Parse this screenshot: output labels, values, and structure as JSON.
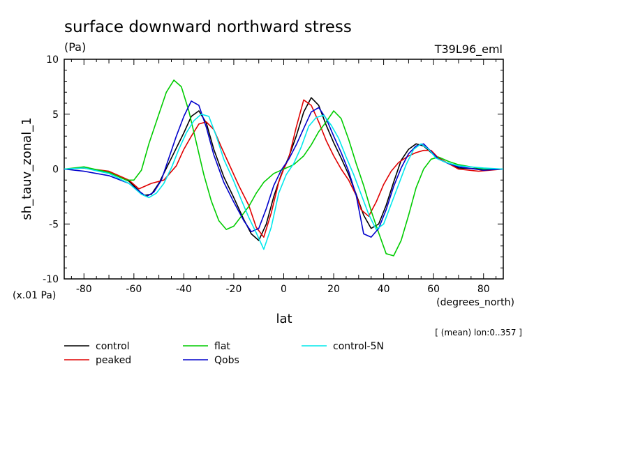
{
  "chart_data": {
    "type": "line",
    "title": "surface downward northward stress",
    "units": "(Pa)",
    "run_label": "T39L96_eml",
    "scale_label": "(x.01 Pa)",
    "x_units": "(degrees_north)",
    "xlabel": "lat",
    "ylabel": "sh_tauv_zonal_1",
    "note": "[ (mean) lon:0..357 ]",
    "xlim": [
      -87.9,
      87.9
    ],
    "ylim": [
      -10,
      10
    ],
    "x_ticks": [
      -80,
      -60,
      -40,
      -20,
      0,
      20,
      40,
      60,
      80
    ],
    "y_ticks": [
      -10,
      -5,
      0,
      5,
      10
    ],
    "legend_position": "bottom",
    "series": [
      {
        "name": "control",
        "color": "#000000",
        "points": [
          [
            -87.9,
            0
          ],
          [
            -80,
            0.1
          ],
          [
            -70,
            -0.3
          ],
          [
            -62,
            -1.1
          ],
          [
            -56,
            -2.4
          ],
          [
            -53,
            -2.3
          ],
          [
            -50,
            -1.3
          ],
          [
            -45,
            1
          ],
          [
            -40,
            3.3
          ],
          [
            -37,
            4.8
          ],
          [
            -34,
            5.3
          ],
          [
            -31,
            4.2
          ],
          [
            -28,
            1.8
          ],
          [
            -24,
            -0.7
          ],
          [
            -20,
            -2.6
          ],
          [
            -16,
            -4.6
          ],
          [
            -13,
            -5.9
          ],
          [
            -10,
            -6.5
          ],
          [
            -7,
            -5
          ],
          [
            -4,
            -2.5
          ],
          [
            -1,
            -0.5
          ],
          [
            2,
            1.1
          ],
          [
            5,
            3
          ],
          [
            8,
            5.2
          ],
          [
            11,
            6.5
          ],
          [
            14,
            5.8
          ],
          [
            17,
            4
          ],
          [
            20,
            2.4
          ],
          [
            23,
            1
          ],
          [
            26,
            -0.5
          ],
          [
            29,
            -2.3
          ],
          [
            32,
            -4.2
          ],
          [
            35,
            -5.4
          ],
          [
            38,
            -5
          ],
          [
            41,
            -3.3
          ],
          [
            44,
            -1.2
          ],
          [
            47,
            0.8
          ],
          [
            50,
            1.8
          ],
          [
            53,
            2.3
          ],
          [
            56,
            2.1
          ],
          [
            60,
            1.3
          ],
          [
            65,
            0.6
          ],
          [
            70,
            0.1
          ],
          [
            80,
            0
          ],
          [
            87.9,
            0
          ]
        ]
      },
      {
        "name": "peaked",
        "color": "#e00000",
        "points": [
          [
            -87.9,
            0
          ],
          [
            -80,
            0.1
          ],
          [
            -70,
            -0.2
          ],
          [
            -62,
            -1
          ],
          [
            -58,
            -1.8
          ],
          [
            -53,
            -1.3
          ],
          [
            -48,
            -1
          ],
          [
            -43,
            0.3
          ],
          [
            -40,
            1.8
          ],
          [
            -37,
            3
          ],
          [
            -34,
            4.1
          ],
          [
            -31,
            4.3
          ],
          [
            -28,
            3.6
          ],
          [
            -25,
            2
          ],
          [
            -21,
            0
          ],
          [
            -18,
            -1.5
          ],
          [
            -14,
            -3.3
          ],
          [
            -11,
            -5.3
          ],
          [
            -8,
            -6.2
          ],
          [
            -5,
            -4
          ],
          [
            -2,
            -1.2
          ],
          [
            0,
            0
          ],
          [
            2,
            1
          ],
          [
            5,
            3.8
          ],
          [
            8,
            6.3
          ],
          [
            11,
            5.8
          ],
          [
            14,
            4.3
          ],
          [
            17,
            2.6
          ],
          [
            20,
            1.2
          ],
          [
            23,
            0
          ],
          [
            26,
            -1
          ],
          [
            29,
            -2.4
          ],
          [
            31,
            -3.7
          ],
          [
            34,
            -4.3
          ],
          [
            37,
            -3
          ],
          [
            40,
            -1.4
          ],
          [
            43,
            -0.2
          ],
          [
            46,
            0.6
          ],
          [
            50,
            1.2
          ],
          [
            53,
            1.5
          ],
          [
            56,
            1.7
          ],
          [
            59,
            1.7
          ],
          [
            62,
            1
          ],
          [
            66,
            0.5
          ],
          [
            70,
            0
          ],
          [
            78,
            -0.2
          ],
          [
            87.9,
            0
          ]
        ]
      },
      {
        "name": "flat",
        "color": "#00cc00",
        "points": [
          [
            -87.9,
            0
          ],
          [
            -80,
            0.2
          ],
          [
            -70,
            -0.3
          ],
          [
            -63,
            -1
          ],
          [
            -60,
            -1
          ],
          [
            -57,
            -0.1
          ],
          [
            -54,
            2.3
          ],
          [
            -50,
            5
          ],
          [
            -47,
            7
          ],
          [
            -44,
            8.1
          ],
          [
            -41,
            7.5
          ],
          [
            -38,
            5.3
          ],
          [
            -35,
            2.4
          ],
          [
            -32,
            -0.5
          ],
          [
            -29,
            -2.9
          ],
          [
            -26,
            -4.7
          ],
          [
            -23,
            -5.5
          ],
          [
            -20,
            -5.2
          ],
          [
            -17,
            -4.3
          ],
          [
            -14,
            -3.4
          ],
          [
            -11,
            -2.2
          ],
          [
            -8,
            -1.2
          ],
          [
            -4,
            -0.4
          ],
          [
            0,
            0
          ],
          [
            4,
            0.4
          ],
          [
            8,
            1.2
          ],
          [
            11,
            2.2
          ],
          [
            14,
            3.4
          ],
          [
            17,
            4.3
          ],
          [
            20,
            5.3
          ],
          [
            23,
            4.6
          ],
          [
            26,
            2.7
          ],
          [
            29,
            0.5
          ],
          [
            32,
            -1.5
          ],
          [
            35,
            -3.8
          ],
          [
            38,
            -5.8
          ],
          [
            41,
            -7.7
          ],
          [
            44,
            -7.9
          ],
          [
            47,
            -6.5
          ],
          [
            50,
            -4.2
          ],
          [
            53,
            -1.7
          ],
          [
            56,
            0
          ],
          [
            59,
            0.9
          ],
          [
            62,
            1.1
          ],
          [
            66,
            0.7
          ],
          [
            70,
            0.4
          ],
          [
            80,
            0
          ],
          [
            87.9,
            0
          ]
        ]
      },
      {
        "name": "Qobs",
        "color": "#0000cc",
        "points": [
          [
            -87.9,
            0
          ],
          [
            -80,
            -0.2
          ],
          [
            -70,
            -0.6
          ],
          [
            -62,
            -1.3
          ],
          [
            -58,
            -2
          ],
          [
            -55,
            -2.5
          ],
          [
            -52,
            -2.1
          ],
          [
            -49,
            -1
          ],
          [
            -46,
            1
          ],
          [
            -43,
            3
          ],
          [
            -40,
            4.8
          ],
          [
            -37,
            6.2
          ],
          [
            -34,
            5.8
          ],
          [
            -31,
            3.8
          ],
          [
            -28,
            1.3
          ],
          [
            -24,
            -1.2
          ],
          [
            -20,
            -3
          ],
          [
            -16,
            -4.7
          ],
          [
            -13,
            -5.7
          ],
          [
            -10,
            -5.4
          ],
          [
            -7,
            -3.6
          ],
          [
            -4,
            -1.5
          ],
          [
            -1,
            -0.1
          ],
          [
            2,
            0.9
          ],
          [
            5,
            2.2
          ],
          [
            8,
            3.7
          ],
          [
            11,
            5.2
          ],
          [
            14,
            5.6
          ],
          [
            17,
            4.6
          ],
          [
            20,
            3
          ],
          [
            23,
            1.5
          ],
          [
            26,
            -0.2
          ],
          [
            29,
            -2.4
          ],
          [
            32,
            -5.9
          ],
          [
            35,
            -6.2
          ],
          [
            38,
            -5.4
          ],
          [
            41,
            -3.7
          ],
          [
            44,
            -1.6
          ],
          [
            47,
            0.1
          ],
          [
            50,
            1.4
          ],
          [
            53,
            2.1
          ],
          [
            56,
            2.3
          ],
          [
            59,
            1.6
          ],
          [
            62,
            0.9
          ],
          [
            66,
            0.5
          ],
          [
            70,
            0.2
          ],
          [
            80,
            -0.1
          ],
          [
            87.9,
            0
          ]
        ]
      },
      {
        "name": "control-5N",
        "color": "#00e8ec",
        "points": [
          [
            -87.9,
            0
          ],
          [
            -80,
            0.1
          ],
          [
            -70,
            -0.4
          ],
          [
            -62,
            -1.3
          ],
          [
            -57,
            -2.3
          ],
          [
            -54,
            -2.6
          ],
          [
            -51,
            -2.2
          ],
          [
            -48,
            -1.3
          ],
          [
            -45,
            0.1
          ],
          [
            -42,
            1.8
          ],
          [
            -39,
            3.3
          ],
          [
            -36,
            4.4
          ],
          [
            -33,
            5
          ],
          [
            -30,
            4.8
          ],
          [
            -27,
            3
          ],
          [
            -24,
            0.9
          ],
          [
            -20,
            -1.1
          ],
          [
            -17,
            -2.8
          ],
          [
            -14,
            -4.4
          ],
          [
            -11,
            -5.8
          ],
          [
            -8,
            -7.3
          ],
          [
            -5,
            -5.3
          ],
          [
            -2,
            -2.2
          ],
          [
            1,
            -0.5
          ],
          [
            4,
            0.5
          ],
          [
            7,
            2
          ],
          [
            10,
            3.9
          ],
          [
            13,
            4.7
          ],
          [
            16,
            4.9
          ],
          [
            19,
            4
          ],
          [
            22,
            2.8
          ],
          [
            25,
            1.1
          ],
          [
            28,
            -0.5
          ],
          [
            31,
            -2.3
          ],
          [
            34,
            -4.1
          ],
          [
            37,
            -5.5
          ],
          [
            40,
            -5
          ],
          [
            43,
            -3.2
          ],
          [
            46,
            -1.4
          ],
          [
            49,
            0.4
          ],
          [
            52,
            1.8
          ],
          [
            55,
            2.3
          ],
          [
            58,
            1.8
          ],
          [
            61,
            1
          ],
          [
            65,
            0.6
          ],
          [
            70,
            0.3
          ],
          [
            80,
            0.1
          ],
          [
            87.9,
            0
          ]
        ]
      }
    ]
  }
}
